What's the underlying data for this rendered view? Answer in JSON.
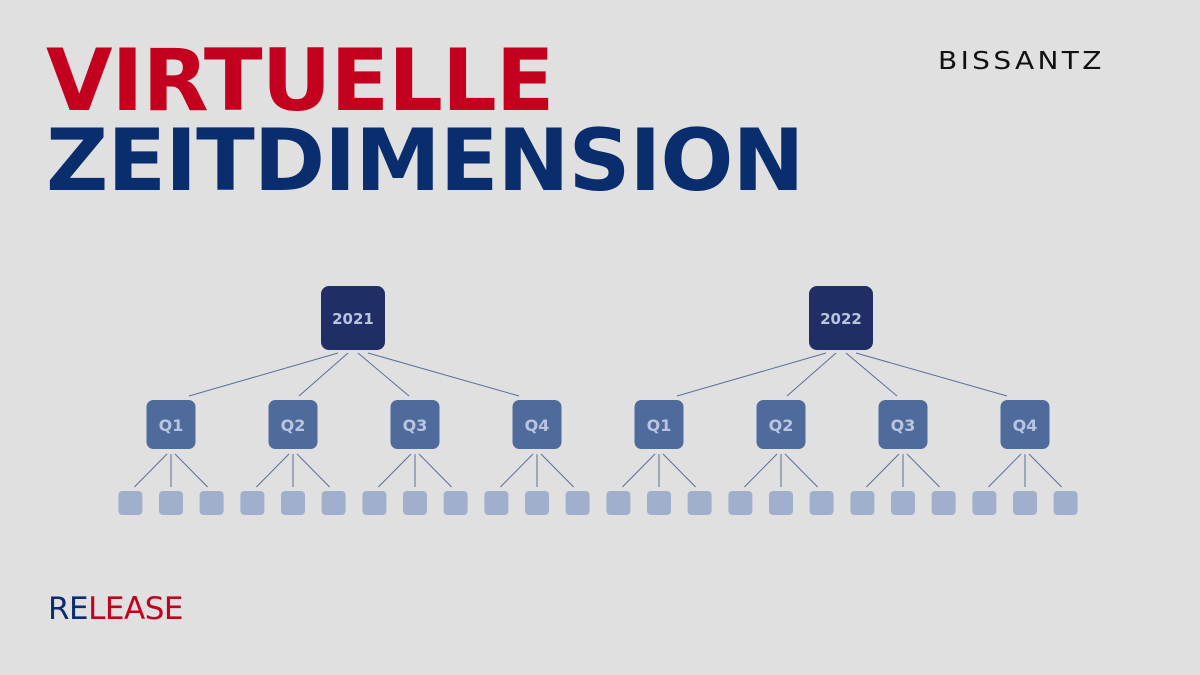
{
  "title": {
    "line1": "VIRTUELLE",
    "line2": "ZEITDIMENSION"
  },
  "logo": "BISSANTZ",
  "release": {
    "part1": "RE",
    "part2": "LEASE"
  },
  "colors": {
    "background": "#e0e0e0",
    "red": "#c4001f",
    "navy": "#0a2d6e",
    "year_node": "#1f2f66",
    "quarter_node": "#4e6b9c",
    "month_node": "#a0b0cc",
    "node_text": "#b9c5df",
    "edge": "#5a6f99"
  },
  "tree": {
    "years": [
      {
        "label": "2021",
        "quarters": [
          "Q1",
          "Q2",
          "Q3",
          "Q4"
        ]
      },
      {
        "label": "2022",
        "quarters": [
          "Q1",
          "Q2",
          "Q3",
          "Q4"
        ]
      }
    ],
    "months_per_quarter": 3
  }
}
